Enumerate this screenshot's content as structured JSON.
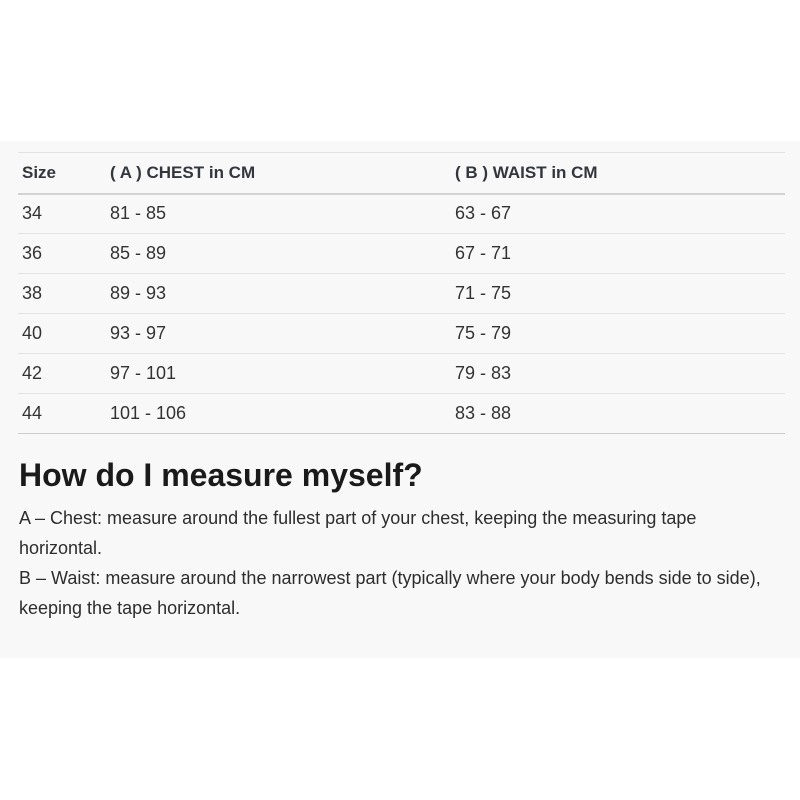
{
  "colors": {
    "page_background": "#ffffff",
    "section_background": "#f8f8f8",
    "row_border": "#e2e2e2",
    "header_border": "#d2d2d2",
    "table_text": "#333333",
    "heading_text": "#1a1a1a",
    "body_text": "#2d2d2d"
  },
  "size_table": {
    "columns": [
      "Size",
      "( A ) CHEST in CM",
      "( B ) WAIST in CM"
    ],
    "rows": [
      {
        "size": "34",
        "chest": "81 - 85",
        "waist": "63 - 67"
      },
      {
        "size": "36",
        "chest": "85 - 89",
        "waist": "67 - 71"
      },
      {
        "size": "38",
        "chest": "89 - 93",
        "waist": "71 - 75"
      },
      {
        "size": "40",
        "chest": "93 - 97",
        "waist": "75 - 79"
      },
      {
        "size": "42",
        "chest": "97 - 101",
        "waist": "79 - 83"
      },
      {
        "size": "44",
        "chest": "101 - 106",
        "waist": "83 - 88"
      }
    ]
  },
  "measure_section": {
    "heading": "How do I measure myself?",
    "paragraphs": [
      "A – Chest: measure around the fullest part of your chest, keeping the measuring tape horizontal.",
      "B – Waist: measure around the narrowest part (typically where your body bends side to side), keeping the tape horizontal."
    ]
  }
}
